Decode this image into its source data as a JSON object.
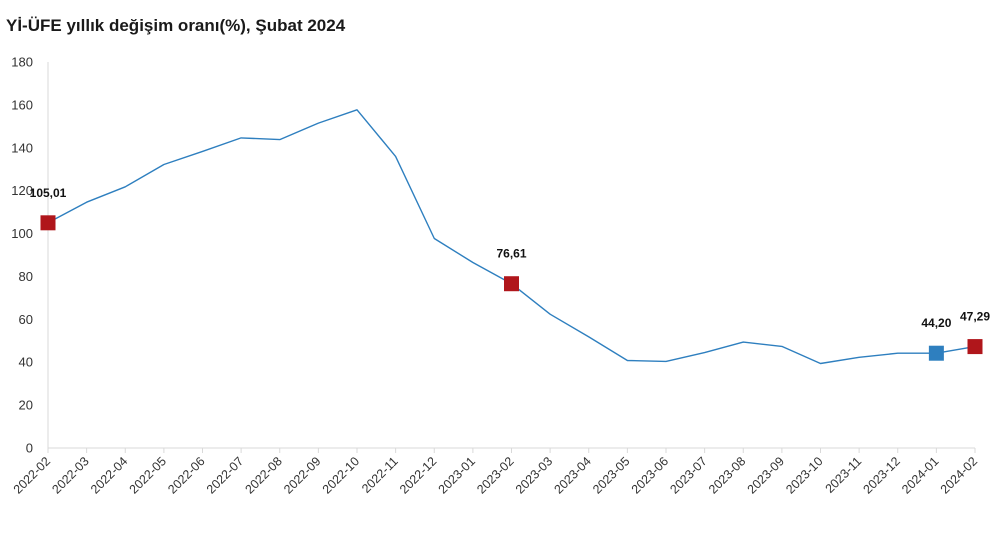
{
  "chart_data": {
    "type": "line",
    "title": "Yİ-ÜFE yıllık değişim oranı(%), Şubat 2024",
    "xlabel": "",
    "ylabel": "",
    "ylim": [
      0,
      180
    ],
    "yticks": [
      0,
      20,
      40,
      60,
      80,
      100,
      120,
      140,
      160,
      180
    ],
    "grid": false,
    "legend": "none",
    "line_color": "#2e7fbf",
    "categories": [
      "2022-02",
      "2022-03",
      "2022-04",
      "2022-05",
      "2022-06",
      "2022-07",
      "2022-08",
      "2022-09",
      "2022-10",
      "2022-11",
      "2022-12",
      "2023-01",
      "2023-02",
      "2023-03",
      "2023-04",
      "2023-05",
      "2023-06",
      "2023-07",
      "2023-08",
      "2023-09",
      "2023-10",
      "2023-11",
      "2023-12",
      "2024-01",
      "2024-02"
    ],
    "series": [
      {
        "values": [
          105.01,
          114.6,
          121.8,
          132.2,
          138.3,
          144.6,
          143.8,
          151.5,
          157.7,
          136.0,
          97.7,
          86.5,
          76.61,
          62.4,
          51.8,
          40.8,
          40.4,
          44.5,
          49.4,
          47.4,
          39.4,
          42.3,
          44.2,
          44.2,
          47.29
        ]
      }
    ],
    "markers": [
      {
        "index": 0,
        "label": "105,01",
        "color": "#b0161b"
      },
      {
        "index": 12,
        "label": "76,61",
        "color": "#b0161b"
      },
      {
        "index": 23,
        "label": "44,20",
        "color": "#2e7fbf"
      },
      {
        "index": 24,
        "label": "47,29",
        "color": "#b0161b"
      }
    ]
  }
}
